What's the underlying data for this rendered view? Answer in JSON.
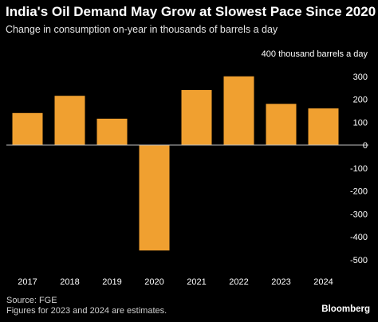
{
  "chart_data": {
    "type": "bar",
    "title": "India's Oil Demand May Grow at Slowest Pace Since 2020",
    "subtitle": "Change in consumption on-year in thousands of barrels a day",
    "categories": [
      "2017",
      "2018",
      "2019",
      "2020",
      "2021",
      "2022",
      "2023",
      "2024"
    ],
    "values": [
      140,
      215,
      115,
      -460,
      240,
      300,
      180,
      160
    ],
    "ylim": [
      -500,
      400
    ],
    "yticks": [
      -500,
      -400,
      -300,
      -200,
      -100,
      0,
      100,
      200,
      300
    ],
    "y_top_label": "400 thousand barrels a day",
    "y_axis_position": "right",
    "grid": false,
    "bar_color": "#F0A030",
    "text_color": "#FFFFFF"
  },
  "footer": {
    "source": "Source: FGE",
    "note": "Figures for 2023 and 2024 are estimates.",
    "brand": "Bloomberg"
  }
}
